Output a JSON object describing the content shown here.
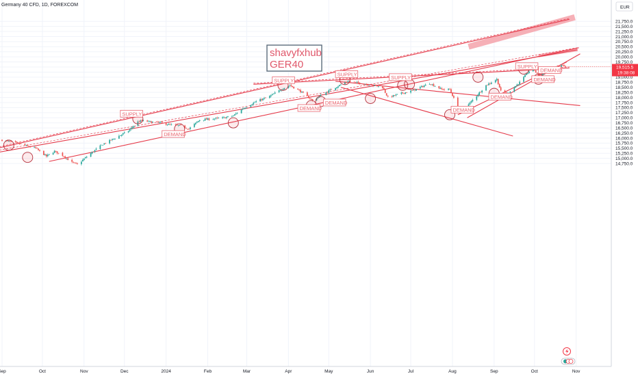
{
  "header": {
    "symbol_title": "Germany 40 CFD, 1D, FOREXCOM",
    "currency": "EUR"
  },
  "watermark": {
    "line1": "shavyfxhub",
    "line2": "GER40"
  },
  "price_tag": {
    "price": "19,515.5",
    "countdown": "19:38:08"
  },
  "colors": {
    "up": "#26a69a",
    "down": "#ef5350",
    "trend": "#e53949",
    "zone_fill": "rgba(242,54,69,0.10)",
    "tag_bg": "#f23645"
  },
  "chart_data": {
    "type": "candlestick",
    "ylim": [
      14650,
      22000
    ],
    "y_ticks": [
      14750,
      15000,
      15250,
      15500,
      15750,
      16000,
      16250,
      16500,
      16750,
      17000,
      17250,
      17500,
      17750,
      18000,
      18250,
      18500,
      18750,
      19000,
      19250,
      19500,
      19750,
      20000,
      20250,
      20500,
      20750,
      21000,
      21250,
      21500,
      21750
    ],
    "y_tick_labels": [
      "14,750.0",
      "15,000.0",
      "15,250.0",
      "15,500.0",
      "15,750.0",
      "16,000.0",
      "16,250.0",
      "16,500.0",
      "16,750.0",
      "17,000.0",
      "17,250.0",
      "17,500.0",
      "17,750.0",
      "18,000.0",
      "18,250.0",
      "18,500.0",
      "18,750.0",
      "19,000.0",
      "19,250.0",
      "19,500.0",
      "19,750.0",
      "20,000.0",
      "20,250.0",
      "20,500.0",
      "20,750.0",
      "21,000.0",
      "21,250.0",
      "21,500.0",
      "21,750.0"
    ],
    "x_ticks": [
      {
        "label": "Sep",
        "date": "2023-09-01"
      },
      {
        "label": "Oct",
        "date": "2023-10-01"
      },
      {
        "label": "Nov",
        "date": "2023-11-01"
      },
      {
        "label": "Dec",
        "date": "2023-12-01"
      },
      {
        "label": "2024",
        "date": "2024-01-01"
      },
      {
        "label": "Feb",
        "date": "2024-02-01"
      },
      {
        "label": "Mar",
        "date": "2024-03-01"
      },
      {
        "label": "Apr",
        "date": "2024-04-01"
      },
      {
        "label": "May",
        "date": "2024-05-01"
      },
      {
        "label": "Jun",
        "date": "2024-06-01"
      },
      {
        "label": "Jul",
        "date": "2024-07-01"
      },
      {
        "label": "Aug",
        "date": "2024-08-01"
      },
      {
        "label": "Sep",
        "date": "2024-09-01"
      },
      {
        "label": "Oct",
        "date": "2024-10-01"
      },
      {
        "label": "Nov",
        "date": "2024-11-01"
      }
    ],
    "price_path": [
      {
        "date": "2023-09-01",
        "price": 15900
      },
      {
        "date": "2023-09-12",
        "price": 15750
      },
      {
        "date": "2023-09-20",
        "price": 15600
      },
      {
        "date": "2023-09-26",
        "price": 15500
      },
      {
        "date": "2023-10-04",
        "price": 15100
      },
      {
        "date": "2023-10-10",
        "price": 15350
      },
      {
        "date": "2023-10-16",
        "price": 15150
      },
      {
        "date": "2023-10-23",
        "price": 14800
      },
      {
        "date": "2023-10-27",
        "price": 14700
      },
      {
        "date": "2023-11-06",
        "price": 15250
      },
      {
        "date": "2023-11-15",
        "price": 15700
      },
      {
        "date": "2023-11-24",
        "price": 16000
      },
      {
        "date": "2023-12-04",
        "price": 16350
      },
      {
        "date": "2023-12-11",
        "price": 16800
      },
      {
        "date": "2023-12-14",
        "price": 16850
      },
      {
        "date": "2023-12-28",
        "price": 16750
      },
      {
        "date": "2024-01-04",
        "price": 16650
      },
      {
        "date": "2024-01-12",
        "price": 16600
      },
      {
        "date": "2024-01-18",
        "price": 16450
      },
      {
        "date": "2024-01-26",
        "price": 16900
      },
      {
        "date": "2024-02-05",
        "price": 16950
      },
      {
        "date": "2024-02-13",
        "price": 17000
      },
      {
        "date": "2024-02-20",
        "price": 17100
      },
      {
        "date": "2024-02-27",
        "price": 17450
      },
      {
        "date": "2024-03-08",
        "price": 17800
      },
      {
        "date": "2024-03-18",
        "price": 18050
      },
      {
        "date": "2024-03-28",
        "price": 18450
      },
      {
        "date": "2024-04-02",
        "price": 18600
      },
      {
        "date": "2024-04-10",
        "price": 18300
      },
      {
        "date": "2024-04-19",
        "price": 17850
      },
      {
        "date": "2024-04-25",
        "price": 18100
      },
      {
        "date": "2024-05-03",
        "price": 18400
      },
      {
        "date": "2024-05-15",
        "price": 18800
      },
      {
        "date": "2024-05-24",
        "price": 18700
      },
      {
        "date": "2024-06-03",
        "price": 18600
      },
      {
        "date": "2024-06-10",
        "price": 18500
      },
      {
        "date": "2024-06-14",
        "price": 18000
      },
      {
        "date": "2024-06-24",
        "price": 18200
      },
      {
        "date": "2024-07-03",
        "price": 18350
      },
      {
        "date": "2024-07-15",
        "price": 18700
      },
      {
        "date": "2024-07-24",
        "price": 18400
      },
      {
        "date": "2024-07-30",
        "price": 18400
      },
      {
        "date": "2024-08-05",
        "price": 17500
      },
      {
        "date": "2024-08-07",
        "price": 17200
      },
      {
        "date": "2024-08-15",
        "price": 17800
      },
      {
        "date": "2024-08-26",
        "price": 18600
      },
      {
        "date": "2024-09-03",
        "price": 18900
      },
      {
        "date": "2024-09-06",
        "price": 18300
      },
      {
        "date": "2024-09-11",
        "price": 18200
      },
      {
        "date": "2024-09-20",
        "price": 18750
      },
      {
        "date": "2024-09-27",
        "price": 19300
      },
      {
        "date": "2024-10-01",
        "price": 19350
      },
      {
        "date": "2024-10-04",
        "price": 19050
      },
      {
        "date": "2024-10-10",
        "price": 19250
      },
      {
        "date": "2024-10-16",
        "price": 19450
      },
      {
        "date": "2024-10-21",
        "price": 19600
      },
      {
        "date": "2024-10-24",
        "price": 19515
      }
    ],
    "trendlines": [
      {
        "from": {
          "date": "2023-08-25",
          "price": 15250
        },
        "to": {
          "date": "2024-11-02",
          "price": 20350
        },
        "style": "solid"
      },
      {
        "from": {
          "date": "2023-08-25",
          "price": 15350
        },
        "to": {
          "date": "2024-11-02",
          "price": 20450
        },
        "style": "dashed"
      },
      {
        "from": {
          "date": "2023-08-25",
          "price": 15450
        },
        "to": {
          "date": "2024-10-27",
          "price": 21850
        },
        "style": "solid"
      },
      {
        "from": {
          "date": "2023-08-25",
          "price": 15500
        },
        "to": {
          "date": "2024-10-27",
          "price": 21900
        },
        "style": "dashed"
      },
      {
        "from": {
          "date": "2023-10-06",
          "price": 14850
        },
        "to": {
          "date": "2024-11-03",
          "price": 20450
        },
        "style": "solid"
      },
      {
        "from": {
          "date": "2024-03-06",
          "price": 18650
        },
        "to": {
          "date": "2024-10-27",
          "price": 19450
        },
        "style": "solid"
      },
      {
        "from": {
          "date": "2024-03-06",
          "price": 18700
        },
        "to": {
          "date": "2024-10-27",
          "price": 19500
        },
        "style": "dashed"
      },
      {
        "from": {
          "date": "2024-05-06",
          "price": 18800
        },
        "to": {
          "date": "2024-11-04",
          "price": 17600
        },
        "style": "solid"
      },
      {
        "from": {
          "date": "2024-05-10",
          "price": 18500
        },
        "to": {
          "date": "2024-09-15",
          "price": 16100
        },
        "style": "solid"
      },
      {
        "from": {
          "date": "2024-08-12",
          "price": 17000
        },
        "to": {
          "date": "2024-11-04",
          "price": 20150
        },
        "style": "solid"
      },
      {
        "from": {
          "date": "2024-08-05",
          "price": 17150
        },
        "to": {
          "date": "2024-10-25",
          "price": 19750
        },
        "style": "solid"
      }
    ],
    "zones": [
      {
        "from": {
          "date": "2024-08-13",
          "price": 20500
        },
        "to": {
          "date": "2024-10-31",
          "price": 21950
        },
        "width": 3.5
      },
      {
        "from": {
          "date": "2024-10-04",
          "price": 20050
        },
        "to": {
          "date": "2024-11-02",
          "price": 20350
        },
        "width": 1.8
      }
    ],
    "circles": [
      {
        "date": "2023-09-06",
        "price": 15650
      },
      {
        "date": "2023-09-20",
        "price": 15050
      },
      {
        "date": "2023-12-11",
        "price": 16950
      },
      {
        "date": "2024-01-11",
        "price": 16450
      },
      {
        "date": "2024-02-20",
        "price": 16750
      },
      {
        "date": "2024-03-28",
        "price": 18600
      },
      {
        "date": "2024-04-18",
        "price": 17600
      },
      {
        "date": "2024-04-25",
        "price": 17800
      },
      {
        "date": "2024-05-13",
        "price": 18880
      },
      {
        "date": "2024-06-01",
        "price": 17950
      },
      {
        "date": "2024-06-25",
        "price": 18600
      },
      {
        "date": "2024-06-30",
        "price": 18650
      },
      {
        "date": "2024-07-30",
        "price": 17150
      },
      {
        "date": "2024-08-20",
        "price": 19000
      },
      {
        "date": "2024-09-01",
        "price": 18200
      },
      {
        "date": "2024-09-23",
        "price": 19400
      },
      {
        "date": "2024-10-04",
        "price": 18900
      }
    ],
    "labels": [
      {
        "text": "SUPPLY",
        "date": "2023-11-28",
        "price": 17100
      },
      {
        "text": "DEMAND",
        "date": "2023-12-29",
        "price": 16100
      },
      {
        "text": "SUPPLY",
        "date": "2024-03-20",
        "price": 18750
      },
      {
        "text": "DEMAND",
        "date": "2024-04-08",
        "price": 17380
      },
      {
        "text": "DEMAND",
        "date": "2024-04-27",
        "price": 17650
      },
      {
        "text": "SUPPLY",
        "date": "2024-05-06",
        "price": 19050
      },
      {
        "text": "SUPPLY",
        "date": "2024-06-15",
        "price": 18900
      },
      {
        "text": "DEMAND",
        "date": "2024-07-31",
        "price": 17300
      },
      {
        "text": "DEMAND",
        "date": "2024-08-28",
        "price": 17940
      },
      {
        "text": "SUPPLY",
        "date": "2024-09-17",
        "price": 19440
      },
      {
        "text": "DEMAND",
        "date": "2024-09-29",
        "price": 18800
      },
      {
        "text": "DEMAND",
        "date": "2024-10-04",
        "price": 19250
      }
    ],
    "last_price": 19515.5
  }
}
